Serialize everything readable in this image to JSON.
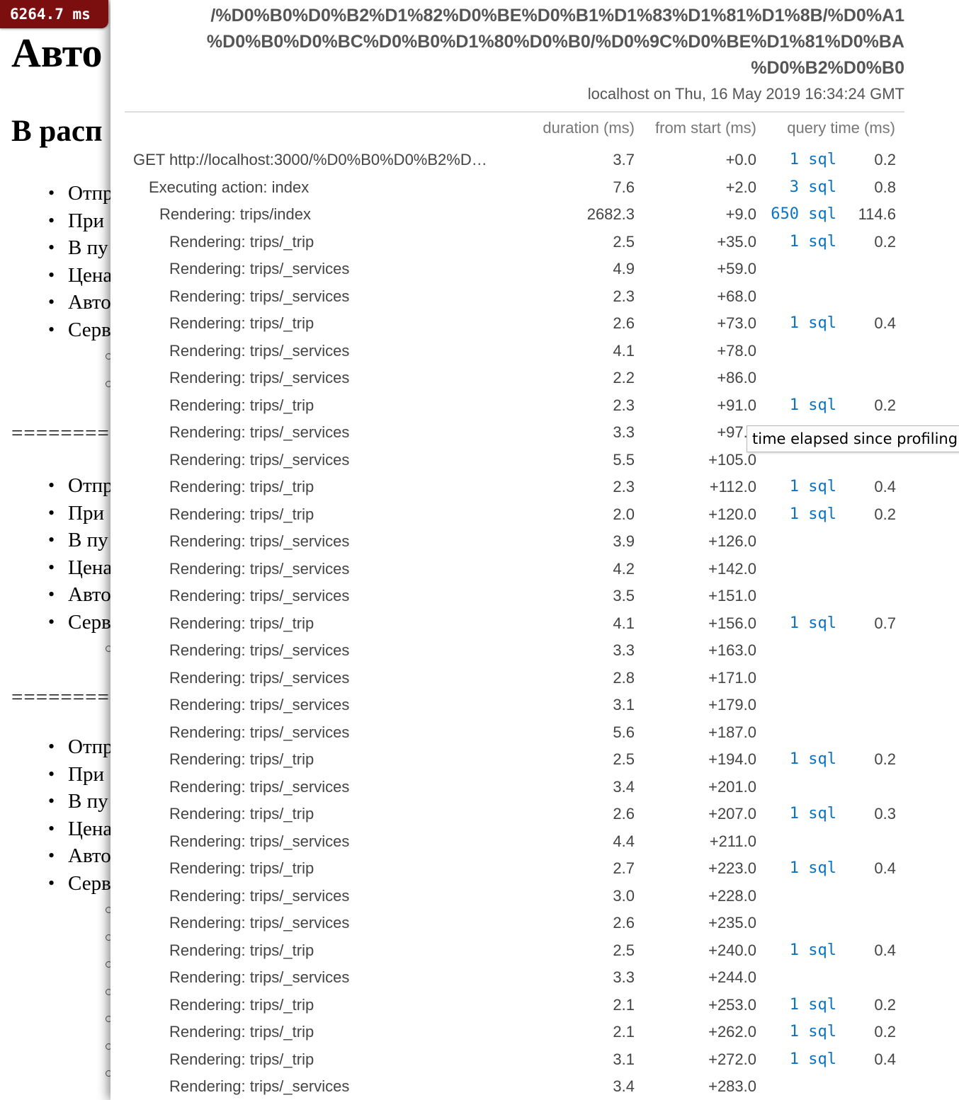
{
  "badge": {
    "time": "6264.7 ms"
  },
  "background": {
    "title": "Авто",
    "subtitle": "В расп",
    "groups": [
      {
        "items": [
          "Отпр",
          "При",
          "В пу",
          "Цена",
          "Авто",
          "Серв"
        ],
        "subs": 2
      },
      {
        "items": [
          "Отпр",
          "При",
          "В пу",
          "Цена",
          "Авто",
          "Серв"
        ],
        "subs": 1
      },
      {
        "items": [
          "Отпр",
          "При",
          "В пу",
          "Цена",
          "Авто",
          "Серв"
        ],
        "subs": 7
      }
    ],
    "separator": "========="
  },
  "popup": {
    "url_lines": [
      "/%D0%B0%D0%B2%D1%82%D0%BE%D0%B1%D1%83%D1%81%D1%8B/%D0%A1",
      "%D0%B0%D0%BC%D0%B0%D1%80%D0%B0/%D0%9C%D0%BE%D1%81%D0%BA",
      "%D0%B2%D0%B0"
    ],
    "meta": "localhost on Thu, 16 May 2019 16:34:24 GMT",
    "columns": {
      "duration": "duration (ms)",
      "from_start": "from start (ms)",
      "query_time": "query time (ms)"
    },
    "tooltip": "time elapsed since profiling",
    "rows": [
      {
        "name": "GET http://localhost:3000/%D0%B0%D0%B2%D…",
        "depth": 0,
        "duration": "3.7",
        "from": "+0.0",
        "sql": "1 sql",
        "qt": "0.2"
      },
      {
        "name": "Executing action: index",
        "depth": 1,
        "duration": "7.6",
        "from": "+2.0",
        "sql": "3 sql",
        "qt": "0.8"
      },
      {
        "name": "Rendering: trips/index",
        "depth": 2,
        "duration": "2682.3",
        "from": "+9.0",
        "sql": "650 sql",
        "qt": "114.6"
      },
      {
        "name": "Rendering: trips/_trip",
        "depth": 3,
        "duration": "2.5",
        "from": "+35.0",
        "sql": "1 sql",
        "qt": "0.2"
      },
      {
        "name": "Rendering: trips/_services",
        "depth": 3,
        "duration": "4.9",
        "from": "+59.0",
        "sql": "",
        "qt": ""
      },
      {
        "name": "Rendering: trips/_services",
        "depth": 3,
        "duration": "2.3",
        "from": "+68.0",
        "sql": "",
        "qt": ""
      },
      {
        "name": "Rendering: trips/_trip",
        "depth": 3,
        "duration": "2.6",
        "from": "+73.0",
        "sql": "1 sql",
        "qt": "0.4"
      },
      {
        "name": "Rendering: trips/_services",
        "depth": 3,
        "duration": "4.1",
        "from": "+78.0",
        "sql": "",
        "qt": ""
      },
      {
        "name": "Rendering: trips/_services",
        "depth": 3,
        "duration": "2.2",
        "from": "+86.0",
        "sql": "",
        "qt": ""
      },
      {
        "name": "Rendering: trips/_trip",
        "depth": 3,
        "duration": "2.3",
        "from": "+91.0",
        "sql": "1 sql",
        "qt": "0.2"
      },
      {
        "name": "Rendering: trips/_services",
        "depth": 3,
        "duration": "3.3",
        "from": "+97.0",
        "sql": "",
        "qt": ""
      },
      {
        "name": "Rendering: trips/_services",
        "depth": 3,
        "duration": "5.5",
        "from": "+105.0",
        "sql": "",
        "qt": ""
      },
      {
        "name": "Rendering: trips/_trip",
        "depth": 3,
        "duration": "2.3",
        "from": "+112.0",
        "sql": "1 sql",
        "qt": "0.4"
      },
      {
        "name": "Rendering: trips/_trip",
        "depth": 3,
        "duration": "2.0",
        "from": "+120.0",
        "sql": "1 sql",
        "qt": "0.2"
      },
      {
        "name": "Rendering: trips/_services",
        "depth": 3,
        "duration": "3.9",
        "from": "+126.0",
        "sql": "",
        "qt": ""
      },
      {
        "name": "Rendering: trips/_services",
        "depth": 3,
        "duration": "4.2",
        "from": "+142.0",
        "sql": "",
        "qt": ""
      },
      {
        "name": "Rendering: trips/_services",
        "depth": 3,
        "duration": "3.5",
        "from": "+151.0",
        "sql": "",
        "qt": ""
      },
      {
        "name": "Rendering: trips/_trip",
        "depth": 3,
        "duration": "4.1",
        "from": "+156.0",
        "sql": "1 sql",
        "qt": "0.7"
      },
      {
        "name": "Rendering: trips/_services",
        "depth": 3,
        "duration": "3.3",
        "from": "+163.0",
        "sql": "",
        "qt": ""
      },
      {
        "name": "Rendering: trips/_services",
        "depth": 3,
        "duration": "2.8",
        "from": "+171.0",
        "sql": "",
        "qt": ""
      },
      {
        "name": "Rendering: trips/_services",
        "depth": 3,
        "duration": "3.1",
        "from": "+179.0",
        "sql": "",
        "qt": ""
      },
      {
        "name": "Rendering: trips/_services",
        "depth": 3,
        "duration": "5.6",
        "from": "+187.0",
        "sql": "",
        "qt": ""
      },
      {
        "name": "Rendering: trips/_trip",
        "depth": 3,
        "duration": "2.5",
        "from": "+194.0",
        "sql": "1 sql",
        "qt": "0.2"
      },
      {
        "name": "Rendering: trips/_services",
        "depth": 3,
        "duration": "3.4",
        "from": "+201.0",
        "sql": "",
        "qt": ""
      },
      {
        "name": "Rendering: trips/_trip",
        "depth": 3,
        "duration": "2.6",
        "from": "+207.0",
        "sql": "1 sql",
        "qt": "0.3"
      },
      {
        "name": "Rendering: trips/_services",
        "depth": 3,
        "duration": "4.4",
        "from": "+211.0",
        "sql": "",
        "qt": ""
      },
      {
        "name": "Rendering: trips/_trip",
        "depth": 3,
        "duration": "2.7",
        "from": "+223.0",
        "sql": "1 sql",
        "qt": "0.4"
      },
      {
        "name": "Rendering: trips/_services",
        "depth": 3,
        "duration": "3.0",
        "from": "+228.0",
        "sql": "",
        "qt": ""
      },
      {
        "name": "Rendering: trips/_services",
        "depth": 3,
        "duration": "2.6",
        "from": "+235.0",
        "sql": "",
        "qt": ""
      },
      {
        "name": "Rendering: trips/_trip",
        "depth": 3,
        "duration": "2.5",
        "from": "+240.0",
        "sql": "1 sql",
        "qt": "0.4"
      },
      {
        "name": "Rendering: trips/_services",
        "depth": 3,
        "duration": "3.3",
        "from": "+244.0",
        "sql": "",
        "qt": ""
      },
      {
        "name": "Rendering: trips/_trip",
        "depth": 3,
        "duration": "2.1",
        "from": "+253.0",
        "sql": "1 sql",
        "qt": "0.2"
      },
      {
        "name": "Rendering: trips/_trip",
        "depth": 3,
        "duration": "2.1",
        "from": "+262.0",
        "sql": "1 sql",
        "qt": "0.2"
      },
      {
        "name": "Rendering: trips/_trip",
        "depth": 3,
        "duration": "3.1",
        "from": "+272.0",
        "sql": "1 sql",
        "qt": "0.4"
      },
      {
        "name": "Rendering: trips/_services",
        "depth": 3,
        "duration": "3.4",
        "from": "+283.0",
        "sql": "",
        "qt": ""
      }
    ]
  }
}
